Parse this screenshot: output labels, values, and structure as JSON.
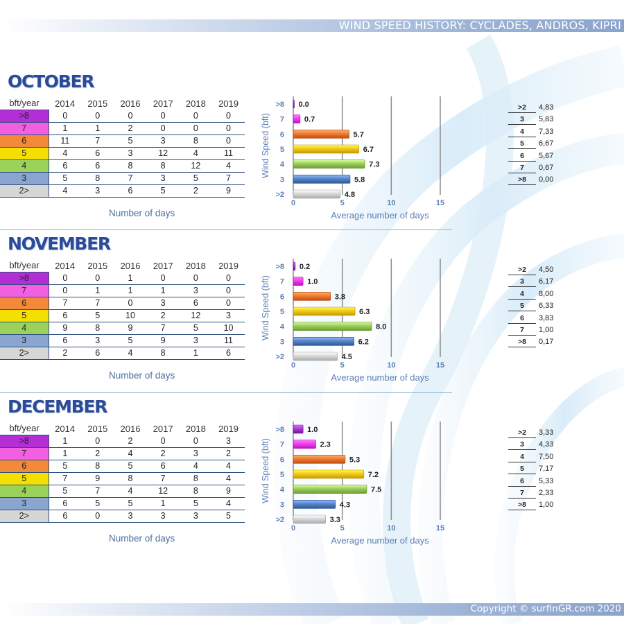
{
  "header": {
    "title": "WIND SPEED HISTORY: CYCLADES, ANDROS, KIPRI"
  },
  "footer": {
    "copyright": "Copyright © surfinGR.com 2020"
  },
  "colors": {
    ">8": "#b22fd6",
    "7": "#f060e0",
    "6": "#f38a3a",
    "5": "#f3e000",
    "4": "#9ad25a",
    "3": "#8aa5cf",
    "2>": "#d6d6d6",
    "bar_>8": "#a83ad0",
    "bar_7": "#ee40ee",
    "bar_6": "#ee7c36",
    "bar_5": "#f2c81a",
    "bar_4": "#9ccc60",
    "bar_3": "#5a86c8",
    "bar_>2": "#d8d8d8",
    "title": "#2a4a9a",
    "caption": "#4a6e9e",
    "axis": "#5a7eb4"
  },
  "table_header": {
    "corner": "bft/year",
    "years": [
      "2014",
      "2015",
      "2016",
      "2017",
      "2018",
      "2019"
    ]
  },
  "days_caption": "Number of days",
  "chart_common": {
    "xlabel": "Average number of days",
    "ylabel": "Wind Speed (bft)",
    "xticks": [
      "0",
      "5",
      "10",
      "15"
    ],
    "xlim": [
      0,
      15
    ]
  },
  "months": [
    {
      "name": "OCTOBER",
      "rows": [
        {
          "bft": ">8",
          "values": [
            "0",
            "0",
            "0",
            "0",
            "0",
            "0"
          ]
        },
        {
          "bft": "7",
          "values": [
            "1",
            "1",
            "2",
            "0",
            "0",
            "0"
          ]
        },
        {
          "bft": "6",
          "values": [
            "11",
            "7",
            "5",
            "3",
            "8",
            "0"
          ]
        },
        {
          "bft": "5",
          "values": [
            "4",
            "6",
            "3",
            "12",
            "4",
            "11"
          ]
        },
        {
          "bft": "4",
          "values": [
            "6",
            "6",
            "8",
            "8",
            "12",
            "4"
          ]
        },
        {
          "bft": "3",
          "values": [
            "5",
            "8",
            "7",
            "3",
            "5",
            "7"
          ]
        },
        {
          "bft": "2>",
          "values": [
            "4",
            "3",
            "6",
            "5",
            "2",
            "9"
          ]
        }
      ],
      "avg_list": [
        {
          "key": ">2",
          "value": "4,83"
        },
        {
          "key": "3",
          "value": "5,83"
        },
        {
          "key": "4",
          "value": "7,33"
        },
        {
          "key": "5",
          "value": "6,67"
        },
        {
          "key": "6",
          "value": "5,67"
        },
        {
          "key": "7",
          "value": "0,67"
        },
        {
          "key": ">8",
          "value": "0,00"
        }
      ]
    },
    {
      "name": "NOVEMBER",
      "rows": [
        {
          "bft": ">8",
          "values": [
            "0",
            "0",
            "1",
            "0",
            "0",
            "0"
          ]
        },
        {
          "bft": "7",
          "values": [
            "0",
            "1",
            "1",
            "1",
            "3",
            "0"
          ]
        },
        {
          "bft": "6",
          "values": [
            "7",
            "7",
            "0",
            "3",
            "6",
            "0"
          ]
        },
        {
          "bft": "5",
          "values": [
            "6",
            "5",
            "10",
            "2",
            "12",
            "3"
          ]
        },
        {
          "bft": "4",
          "values": [
            "9",
            "8",
            "9",
            "7",
            "5",
            "10"
          ]
        },
        {
          "bft": "3",
          "values": [
            "6",
            "3",
            "5",
            "9",
            "3",
            "11"
          ]
        },
        {
          "bft": "2>",
          "values": [
            "2",
            "6",
            "4",
            "8",
            "1",
            "6"
          ]
        }
      ],
      "avg_list": [
        {
          "key": ">2",
          "value": "4,50"
        },
        {
          "key": "3",
          "value": "6,17"
        },
        {
          "key": "4",
          "value": "8,00"
        },
        {
          "key": "5",
          "value": "6,33"
        },
        {
          "key": "6",
          "value": "3,83"
        },
        {
          "key": "7",
          "value": "1,00"
        },
        {
          "key": ">8",
          "value": "0,17"
        }
      ]
    },
    {
      "name": "DECEMBER",
      "rows": [
        {
          "bft": ">8",
          "values": [
            "1",
            "0",
            "2",
            "0",
            "0",
            "3"
          ]
        },
        {
          "bft": "7",
          "values": [
            "1",
            "2",
            "4",
            "2",
            "3",
            "2"
          ]
        },
        {
          "bft": "6",
          "values": [
            "5",
            "8",
            "5",
            "6",
            "4",
            "4"
          ]
        },
        {
          "bft": "5",
          "values": [
            "7",
            "9",
            "8",
            "7",
            "8",
            "4"
          ]
        },
        {
          "bft": "4",
          "values": [
            "5",
            "7",
            "4",
            "12",
            "8",
            "9"
          ]
        },
        {
          "bft": "3",
          "values": [
            "6",
            "5",
            "5",
            "1",
            "5",
            "4"
          ]
        },
        {
          "bft": "2>",
          "values": [
            "6",
            "0",
            "3",
            "3",
            "3",
            "5"
          ]
        }
      ],
      "avg_list": [
        {
          "key": ">2",
          "value": "3,33"
        },
        {
          "key": "3",
          "value": "4,33"
        },
        {
          "key": "4",
          "value": "7,50"
        },
        {
          "key": "5",
          "value": "7,17"
        },
        {
          "key": "6",
          "value": "5,33"
        },
        {
          "key": "7",
          "value": "2,33"
        },
        {
          "key": ">8",
          "value": "1,00"
        }
      ]
    }
  ],
  "chart_data": [
    {
      "type": "bar",
      "orientation": "horizontal",
      "categories": [
        ">8",
        "7",
        "6",
        "5",
        "4",
        "3",
        ">2"
      ],
      "values": [
        0.0,
        0.7,
        5.7,
        6.7,
        7.3,
        5.8,
        4.8
      ],
      "labels": [
        "0.0",
        "0.7",
        "5.7",
        "6.7",
        "7.3",
        "5.8",
        "4.8"
      ],
      "xlabel": "Average number of days",
      "ylabel": "Wind Speed (bft)",
      "xlim": [
        0,
        15
      ],
      "grid": "vertical"
    },
    {
      "type": "bar",
      "orientation": "horizontal",
      "categories": [
        ">8",
        "7",
        "6",
        "5",
        "4",
        "3",
        ">2"
      ],
      "values": [
        0.2,
        1.0,
        3.8,
        6.3,
        8.0,
        6.2,
        4.5
      ],
      "labels": [
        "0.2",
        "1.0",
        "3.8",
        "6.3",
        "8.0",
        "6.2",
        "4.5"
      ],
      "xlabel": "Average number of days",
      "ylabel": "Wind Speed (bft)",
      "xlim": [
        0,
        15
      ],
      "grid": "vertical"
    },
    {
      "type": "bar",
      "orientation": "horizontal",
      "categories": [
        ">8",
        "7",
        "6",
        "5",
        "4",
        "3",
        ">2"
      ],
      "values": [
        1.0,
        2.3,
        5.3,
        7.2,
        7.5,
        4.3,
        3.3
      ],
      "labels": [
        "1.0",
        "2.3",
        "5.3",
        "7.2",
        "7.5",
        "4.3",
        "3.3"
      ],
      "xlabel": "Average number of days",
      "ylabel": "Wind Speed (bft)",
      "xlim": [
        0,
        15
      ],
      "grid": "vertical"
    }
  ]
}
